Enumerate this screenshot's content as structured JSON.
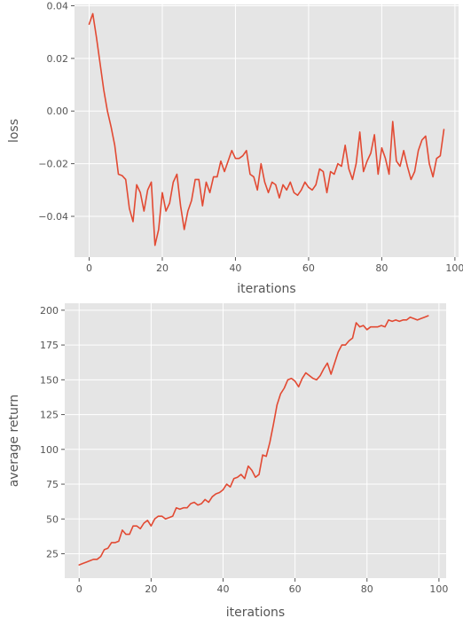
{
  "chart_data": [
    {
      "type": "line",
      "title": "",
      "xlabel": "iterations",
      "ylabel": "loss",
      "xlim": [
        -4,
        101
      ],
      "ylim": [
        -0.0555,
        0.0405
      ],
      "xticks": [
        0,
        20,
        40,
        60,
        80,
        100
      ],
      "xtick_labels": [
        "0",
        "20",
        "40",
        "60",
        "80",
        "100"
      ],
      "yticks": [
        -0.04,
        -0.02,
        0.0,
        0.02,
        0.04
      ],
      "ytick_labels": [
        "−0.04",
        "−0.02",
        "0.00",
        "0.02",
        "0.04"
      ],
      "grid": true,
      "color": "#E24A33",
      "background": "#E5E5E5",
      "x": [
        0,
        1,
        2,
        3,
        4,
        5,
        6,
        7,
        8,
        9,
        10,
        11,
        12,
        13,
        14,
        15,
        16,
        17,
        18,
        19,
        20,
        21,
        22,
        23,
        24,
        25,
        26,
        27,
        28,
        29,
        30,
        31,
        32,
        33,
        34,
        35,
        36,
        37,
        38,
        39,
        40,
        41,
        42,
        43,
        44,
        45,
        46,
        47,
        48,
        49,
        50,
        51,
        52,
        53,
        54,
        55,
        56,
        57,
        58,
        59,
        60,
        61,
        62,
        63,
        64,
        65,
        66,
        67,
        68,
        69,
        70,
        71,
        72,
        73,
        74,
        75,
        76,
        77,
        78,
        79,
        80,
        81,
        82,
        83,
        84,
        85,
        86,
        87,
        88,
        89,
        90,
        91,
        92,
        93,
        94,
        95,
        96,
        97
      ],
      "y": [
        0.033,
        0.037,
        0.028,
        0.018,
        0.008,
        0.0,
        -0.006,
        -0.013,
        -0.024,
        -0.0245,
        -0.026,
        -0.037,
        -0.042,
        -0.028,
        -0.031,
        -0.038,
        -0.03,
        -0.027,
        -0.051,
        -0.045,
        -0.031,
        -0.038,
        -0.035,
        -0.027,
        -0.024,
        -0.036,
        -0.045,
        -0.038,
        -0.034,
        -0.026,
        -0.026,
        -0.036,
        -0.027,
        -0.031,
        -0.025,
        -0.025,
        -0.019,
        -0.023,
        -0.019,
        -0.015,
        -0.018,
        -0.018,
        -0.017,
        -0.015,
        -0.024,
        -0.025,
        -0.03,
        -0.02,
        -0.027,
        -0.031,
        -0.027,
        -0.028,
        -0.033,
        -0.028,
        -0.03,
        -0.027,
        -0.031,
        -0.032,
        -0.03,
        -0.027,
        -0.029,
        -0.03,
        -0.028,
        -0.022,
        -0.023,
        -0.031,
        -0.023,
        -0.024,
        -0.02,
        -0.021,
        -0.013,
        -0.022,
        -0.026,
        -0.02,
        -0.008,
        -0.023,
        -0.019,
        -0.016,
        -0.009,
        -0.024,
        -0.014,
        -0.018,
        -0.024,
        -0.004,
        -0.019,
        -0.021,
        -0.015,
        -0.021,
        -0.026,
        -0.023,
        -0.015,
        -0.011,
        -0.0095,
        -0.02,
        -0.025,
        -0.018,
        -0.017,
        -0.007
      ]
    },
    {
      "type": "line",
      "title": "",
      "xlabel": "iterations",
      "ylabel": "average return",
      "xlim": [
        -4,
        102
      ],
      "ylim": [
        7.5,
        205
      ],
      "xticks": [
        0,
        20,
        40,
        60,
        80,
        100
      ],
      "xtick_labels": [
        "0",
        "20",
        "40",
        "60",
        "80",
        "100"
      ],
      "yticks": [
        25,
        50,
        75,
        100,
        125,
        150,
        175,
        200
      ],
      "ytick_labels": [
        "25",
        "50",
        "75",
        "100",
        "125",
        "150",
        "175",
        "200"
      ],
      "grid": true,
      "color": "#E24A33",
      "background": "#E5E5E5",
      "x": [
        0,
        1,
        2,
        3,
        4,
        5,
        6,
        7,
        8,
        9,
        10,
        11,
        12,
        13,
        14,
        15,
        16,
        17,
        18,
        19,
        20,
        21,
        22,
        23,
        24,
        25,
        26,
        27,
        28,
        29,
        30,
        31,
        32,
        33,
        34,
        35,
        36,
        37,
        38,
        39,
        40,
        41,
        42,
        43,
        44,
        45,
        46,
        47,
        48,
        49,
        50,
        51,
        52,
        53,
        54,
        55,
        56,
        57,
        58,
        59,
        60,
        61,
        62,
        63,
        64,
        65,
        66,
        67,
        68,
        69,
        70,
        71,
        72,
        73,
        74,
        75,
        76,
        77,
        78,
        79,
        80,
        81,
        82,
        83,
        84,
        85,
        86,
        87,
        88,
        89,
        90,
        91,
        92,
        93,
        94,
        95,
        96,
        97
      ],
      "y": [
        17,
        18,
        19,
        20,
        21,
        21,
        23,
        28,
        29,
        33,
        33,
        34,
        42,
        39,
        39,
        45,
        45,
        43,
        47,
        49,
        45,
        50,
        52,
        52,
        50,
        51,
        52,
        58,
        57,
        58,
        58,
        61,
        62,
        60,
        61,
        64,
        62,
        66,
        68,
        69,
        71,
        75,
        73,
        79,
        80,
        82,
        79,
        88,
        85,
        80,
        82,
        96,
        95,
        105,
        118,
        132,
        140,
        144,
        150,
        151,
        149,
        145,
        151,
        155,
        153,
        151,
        150,
        153,
        158,
        162,
        154,
        162,
        170,
        175,
        175,
        178,
        180,
        191,
        188,
        189,
        186,
        188,
        188,
        188,
        189,
        188,
        193,
        192,
        193,
        192,
        193,
        193,
        195,
        194,
        193,
        194,
        195,
        196
      ]
    }
  ]
}
